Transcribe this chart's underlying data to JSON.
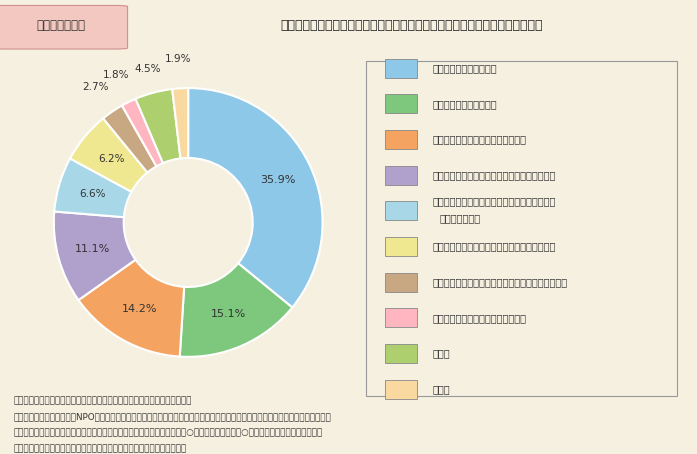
{
  "title_box": "第１－３－４図",
  "title_main": "地域活動などに参加する際苦労すること，または参加できない要因となること",
  "values": [
    35.9,
    15.1,
    14.2,
    11.1,
    6.6,
    6.2,
    2.7,
    1.8,
    4.5,
    1.9
  ],
  "labels": [
    "35.9%",
    "15.1%",
    "14.2%",
    "11.1%",
    "6.6%",
    "6.2%",
    "2.7%",
    "1.8%",
    "4.5%",
    "1.9%"
  ],
  "colors": [
    "#8DC8E8",
    "#7DC87D",
    "#F4A460",
    "#B0A0CC",
    "#A8D8E8",
    "#F0E890",
    "#C8A882",
    "#FFB6C1",
    "#ADCF6E",
    "#FAD9A1"
  ],
  "legend_labels": [
    "活動する時間がないこと",
    "全く興味がわかないこと",
    "参加するきっかけが得られないこと",
    "身近に団体や活動内容に関する情報がないこと",
    "身近に参加したいと思う適当な活動や共感する\n団体がないこと",
    "身近に一緒に参加できる適当な人がいないこと",
    "活動によって得られるメリットが期待できないこと",
    "家族や職場の理解が得られないこと",
    "その他",
    "無回答"
  ],
  "bg_color": "#F5F0E0",
  "note_lines": [
    "（備考）　１．内閣府「国民生活選好度調査」（平成１５年度）より作成。",
    "　　　　　２．数他は，「NPOやボランティア，地域での活動に参加する際に苦労すること，または参加できない要因となることは",
    "　　　　　　　どんなことですか。あなたにとってあてはまるもの１つに○をお付け下さい。（○は１つ）」に対する回答割合。",
    "　　　　　３．回答者は，全国の１５～７９歳までの男女３，９０８人。"
  ]
}
